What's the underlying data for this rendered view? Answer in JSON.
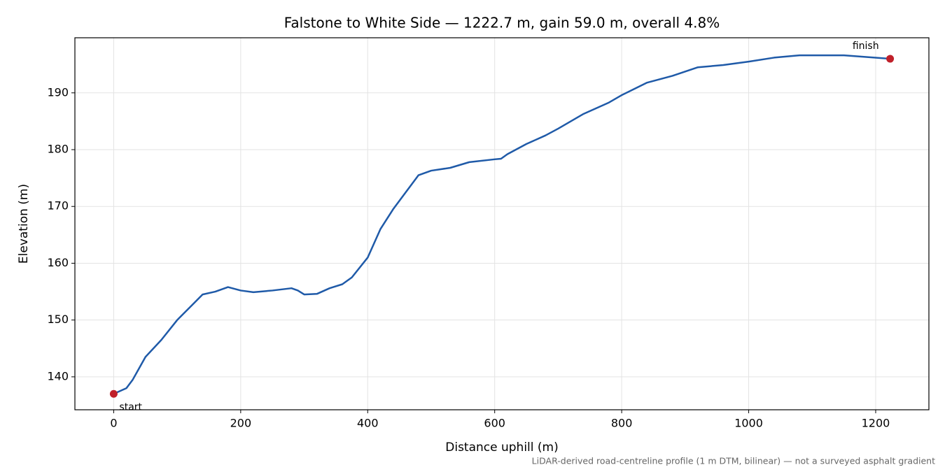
{
  "chart_data": {
    "type": "line",
    "title": "Falstone to White Side — 1222.7 m, gain 59.0 m, overall 4.8%",
    "x_label": "Distance uphill (m)",
    "y_label": "Elevation (m)",
    "footnote": "LiDAR-derived road-centreline profile (1 m DTM, bilinear) — not a surveyed asphalt gradient",
    "x": [
      0,
      20,
      30,
      40,
      50,
      75,
      100,
      125,
      140,
      160,
      180,
      200,
      220,
      250,
      280,
      290,
      300,
      320,
      340,
      360,
      375,
      400,
      420,
      440,
      460,
      480,
      500,
      530,
      560,
      600,
      610,
      620,
      650,
      680,
      700,
      740,
      780,
      800,
      840,
      880,
      920,
      960,
      1000,
      1040,
      1080,
      1150,
      1222.7
    ],
    "series": [
      {
        "name": "Elevation",
        "color": "#1f5aa8",
        "values": [
          137.0,
          138.0,
          139.5,
          141.5,
          143.5,
          146.5,
          150.0,
          152.8,
          154.5,
          155.0,
          155.8,
          155.2,
          154.9,
          155.2,
          155.6,
          155.2,
          154.5,
          154.6,
          155.6,
          156.3,
          157.5,
          161.0,
          166.0,
          169.5,
          172.5,
          175.5,
          176.3,
          176.8,
          177.8,
          178.3,
          178.4,
          179.2,
          181.0,
          182.5,
          183.7,
          186.3,
          188.3,
          189.6,
          191.8,
          193.0,
          194.5,
          194.9,
          195.5,
          196.2,
          196.6,
          196.6,
          196.0
        ]
      }
    ],
    "points": [
      {
        "label": "start",
        "x": 0,
        "y": 137.0,
        "color": "#c0202a"
      },
      {
        "label": "finish",
        "x": 1222.7,
        "y": 196.0,
        "color": "#c0202a"
      }
    ],
    "xlim": [
      -61.1,
      1283.8
    ],
    "ylim": [
      134.2,
      199.7
    ],
    "xticks": [
      0,
      200,
      400,
      600,
      800,
      1000,
      1200
    ],
    "yticks": [
      140,
      150,
      160,
      170,
      180,
      190
    ],
    "grid": true
  }
}
